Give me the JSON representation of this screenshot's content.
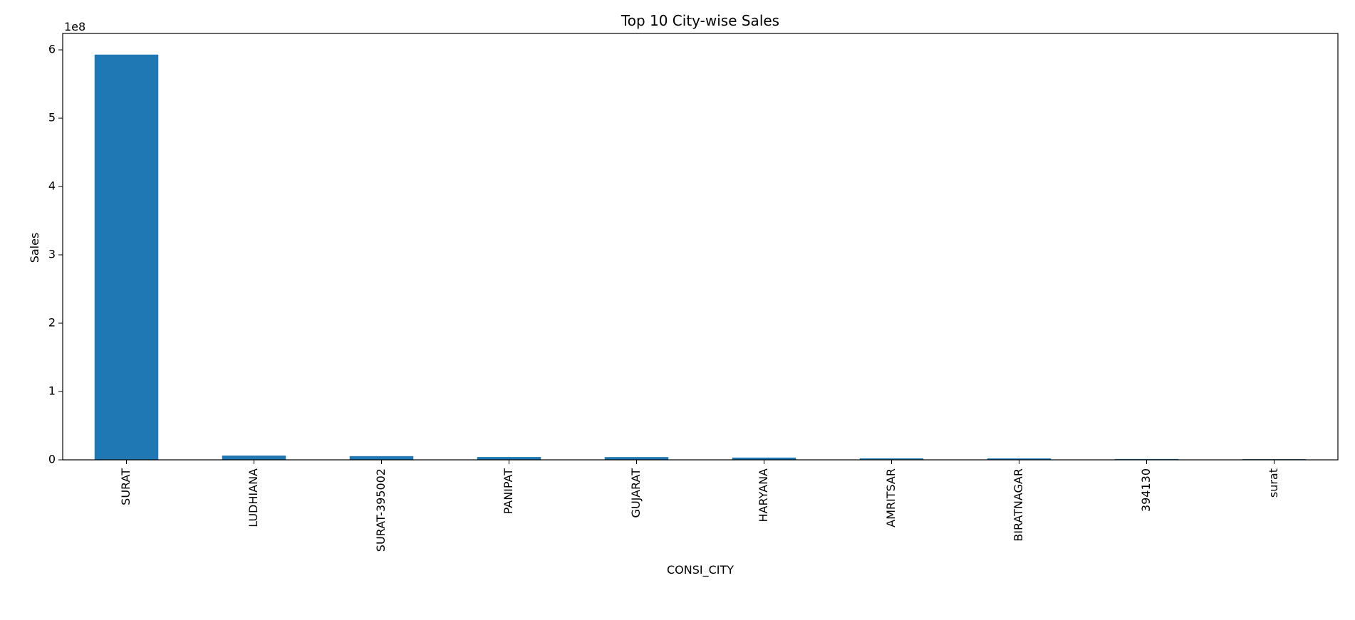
{
  "chart_data": {
    "type": "bar",
    "title": "Top 10 City-wise Sales",
    "xlabel": "CONSI_CITY",
    "ylabel": "Sales",
    "y_offset_label": "1e8",
    "categories": [
      "SURAT",
      "LUDHIANA",
      "SURAT-395002",
      "PANIPAT",
      "GUJARAT",
      "HARYANA",
      "AMRITSAR",
      "BIRATNAGAR",
      "394130",
      "surat"
    ],
    "values": [
      593000000,
      6300000,
      5400000,
      4100000,
      4000000,
      3300000,
      2200000,
      2100000,
      1200000,
      1000000
    ],
    "ylim": [
      0,
      624000000
    ],
    "y_ticks": [
      0,
      100000000,
      200000000,
      300000000,
      400000000,
      500000000,
      600000000
    ],
    "y_tick_labels": [
      "0",
      "1",
      "2",
      "3",
      "4",
      "5",
      "6"
    ],
    "grid": false,
    "bar_color": "#1f77b4"
  }
}
